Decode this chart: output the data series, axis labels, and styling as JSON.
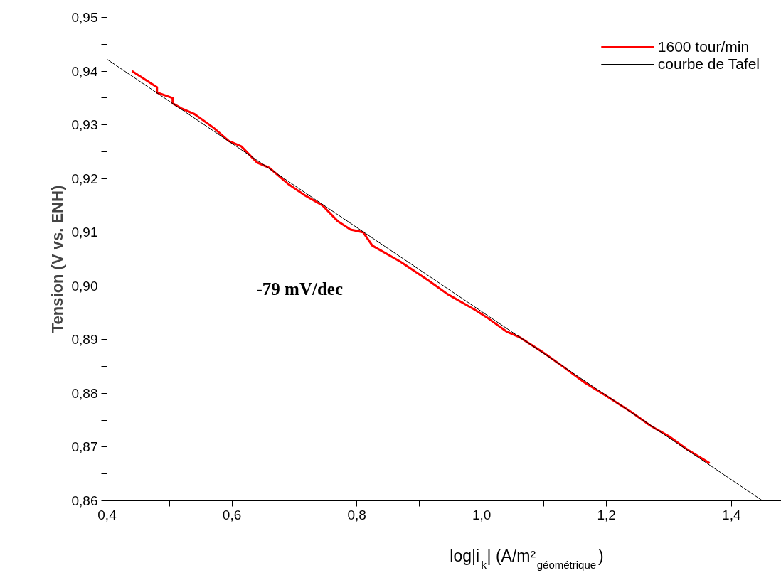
{
  "chart_data": {
    "type": "line",
    "xlabel": "log|i$_{k}$| (A/m²$_{géométrique}$)",
    "ylabel": "Tension (V vs. ENH)",
    "annotations": [
      "-79 mV/dec"
    ],
    "xlim": [
      0.4,
      1.48
    ],
    "ylim": [
      0.86,
      0.95
    ],
    "xticks": [
      {
        "value": 0.4,
        "label": "0,4"
      },
      {
        "value": 0.5,
        "label": null
      },
      {
        "value": 0.6,
        "label": "0,6"
      },
      {
        "value": 0.7,
        "label": null
      },
      {
        "value": 0.8,
        "label": "0,8"
      },
      {
        "value": 0.9,
        "label": null
      },
      {
        "value": 1.0,
        "label": "1,0"
      },
      {
        "value": 1.1,
        "label": null
      },
      {
        "value": 1.2,
        "label": "1,2"
      },
      {
        "value": 1.3,
        "label": null
      },
      {
        "value": 1.4,
        "label": "1,4"
      }
    ],
    "yticks": [
      {
        "value": 0.86,
        "label": "0,86"
      },
      {
        "value": 0.865,
        "label": null
      },
      {
        "value": 0.87,
        "label": "0,87"
      },
      {
        "value": 0.875,
        "label": null
      },
      {
        "value": 0.88,
        "label": "0,88"
      },
      {
        "value": 0.885,
        "label": null
      },
      {
        "value": 0.89,
        "label": "0,89"
      },
      {
        "value": 0.895,
        "label": null
      },
      {
        "value": 0.9,
        "label": "0,90"
      },
      {
        "value": 0.905,
        "label": null
      },
      {
        "value": 0.91,
        "label": "0,91"
      },
      {
        "value": 0.915,
        "label": null
      },
      {
        "value": 0.92,
        "label": "0,92"
      },
      {
        "value": 0.925,
        "label": null
      },
      {
        "value": 0.93,
        "label": "0,93"
      },
      {
        "value": 0.935,
        "label": null
      },
      {
        "value": 0.94,
        "label": "0,94"
      },
      {
        "value": 0.945,
        "label": null
      },
      {
        "value": 0.95,
        "label": "0,95"
      }
    ],
    "grid": false,
    "legend": "top right",
    "marker": "none",
    "line_style": "solid",
    "series": [
      {
        "name": "1600 tour/min",
        "color": "#ff0000",
        "x": [
          0.44,
          0.48,
          0.48,
          0.505,
          0.505,
          0.52,
          0.54,
          0.57,
          0.595,
          0.615,
          0.64,
          0.66,
          0.69,
          0.715,
          0.745,
          0.77,
          0.79,
          0.81,
          0.825,
          0.87,
          0.915,
          0.945,
          0.99,
          1.01,
          1.04,
          1.06,
          1.1,
          1.13,
          1.165,
          1.2,
          1.24,
          1.27,
          1.3,
          1.33,
          1.365
        ],
        "values": [
          0.94,
          0.937,
          0.936,
          0.935,
          0.934,
          0.933,
          0.932,
          0.9295,
          0.927,
          0.926,
          0.923,
          0.922,
          0.919,
          0.917,
          0.915,
          0.912,
          0.9105,
          0.91,
          0.9075,
          0.9045,
          0.901,
          0.8985,
          0.8955,
          0.894,
          0.8915,
          0.8905,
          0.8875,
          0.885,
          0.882,
          0.8795,
          0.8765,
          0.874,
          0.872,
          0.8695,
          0.867
        ]
      },
      {
        "name": "courbe de Tafel",
        "color": "#000000",
        "x": [
          0.4,
          1.45
        ],
        "values": [
          0.9422,
          0.86
        ]
      }
    ]
  }
}
